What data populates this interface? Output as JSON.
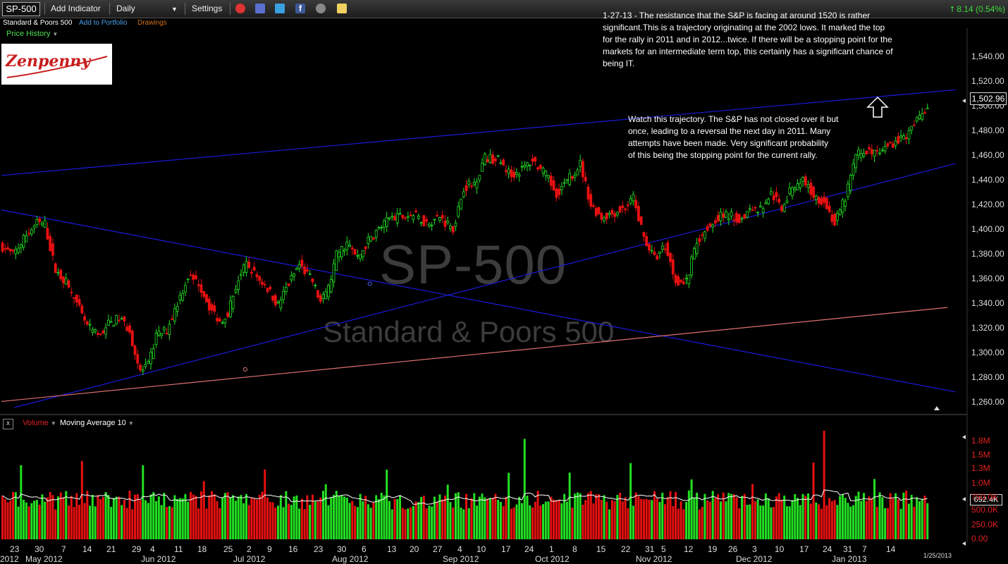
{
  "toolbar": {
    "symbol": "SP-500",
    "add_indicator": "Add Indicator",
    "interval": "Daily",
    "settings": "Settings",
    "change": "8.14 (0.54%)"
  },
  "subbar": {
    "name": "Standard & Poors 500",
    "add_portfolio": "Add to Portfolio",
    "drawings": "Drawings",
    "price_history": "Price History"
  },
  "logo_text": "Zenpenny",
  "notes": {
    "top": "1-27-13 - The resistance that the S&P is facing at around 1520 is rather\nsignificant.This is a trajectory originating at the 2002 lows. It marked the top\nfor the rally in 2011 and in 2012...twice. If there will be a stopping point for the\nmarkets for an intermediate term top, this certainly has a significant chance of\nbeing IT.",
    "mid": "Watch this trajectory. The S&P has not closed over it but\nonce, leading to a reversal the next day in 2011. Many\nattempts have been made. Very significant probability\nof this being the stopping point for the current rally."
  },
  "watermark": {
    "symbol": "SP-500",
    "name": "Standard & Poors 500"
  },
  "volume_header": {
    "close": "x",
    "volume": "Volume",
    "ma": "Moving Average 10"
  },
  "last_price": "1,502.96",
  "last_volume": "692.4K",
  "colors": {
    "up": "#22e022",
    "down": "#e81010",
    "trend": "#1a1adc",
    "support": "#e07070",
    "ma": "#ffffff"
  },
  "chart_data": {
    "type": "candlestick",
    "title": "SP-500",
    "y_ticks": [
      "1,540.00",
      "1,520.00",
      "1,500.00",
      "1,480.00",
      "1,460.00",
      "1,440.00",
      "1,420.00",
      "1,400.00",
      "1,380.00",
      "1,360.00",
      "1,340.00",
      "1,320.00",
      "1,300.00",
      "1,280.00",
      "1,260.00"
    ],
    "ylim": [
      1250,
      1545
    ],
    "x_day_ticks": [
      "23",
      "30",
      "7",
      "14",
      "21",
      "29",
      "4",
      "11",
      "18",
      "25",
      "2",
      "9",
      "16",
      "23",
      "30",
      "6",
      "13",
      "20",
      "27",
      "4",
      "10",
      "17",
      "24",
      "1",
      "8",
      "15",
      "22",
      "31",
      "5",
      "12",
      "19",
      "26",
      "3",
      "10",
      "17",
      "24",
      "31",
      "7",
      "14"
    ],
    "x_month_ticks": [
      "2012",
      "May 2012",
      "Jun 2012",
      "Jul 2012",
      "Aug 2012",
      "Sep 2012",
      "Oct 2012",
      "Nov 2012",
      "Dec 2012",
      "Jan 2013"
    ],
    "last_date": "1/25/2013",
    "close_anchors": [
      [
        0,
        1385
      ],
      [
        4,
        1378
      ],
      [
        9,
        1395
      ],
      [
        13,
        1405
      ],
      [
        16,
        1404
      ],
      [
        20,
        1365
      ],
      [
        24,
        1355
      ],
      [
        28,
        1337
      ],
      [
        32,
        1318
      ],
      [
        36,
        1310
      ],
      [
        40,
        1320
      ],
      [
        44,
        1325
      ],
      [
        48,
        1315
      ],
      [
        51,
        1285
      ],
      [
        52,
        1280
      ],
      [
        55,
        1285
      ],
      [
        58,
        1310
      ],
      [
        62,
        1315
      ],
      [
        66,
        1338
      ],
      [
        70,
        1360
      ],
      [
        74,
        1355
      ],
      [
        78,
        1335
      ],
      [
        82,
        1322
      ],
      [
        85,
        1330
      ],
      [
        89,
        1358
      ],
      [
        92,
        1370
      ],
      [
        96,
        1360
      ],
      [
        100,
        1350
      ],
      [
        104,
        1336
      ],
      [
        107,
        1350
      ],
      [
        112,
        1370
      ],
      [
        117,
        1356
      ],
      [
        120,
        1338
      ],
      [
        123,
        1350
      ],
      [
        126,
        1378
      ],
      [
        130,
        1388
      ],
      [
        134,
        1375
      ],
      [
        138,
        1390
      ],
      [
        142,
        1400
      ],
      [
        146,
        1408
      ],
      [
        150,
        1410
      ],
      [
        155,
        1412
      ],
      [
        160,
        1405
      ],
      [
        165,
        1410
      ],
      [
        170,
        1400
      ],
      [
        174,
        1435
      ],
      [
        178,
        1438
      ],
      [
        182,
        1460
      ],
      [
        187,
        1458
      ],
      [
        192,
        1445
      ],
      [
        196,
        1450
      ],
      [
        200,
        1458
      ],
      [
        205,
        1445
      ],
      [
        209,
        1430
      ],
      [
        213,
        1440
      ],
      [
        218,
        1455
      ],
      [
        222,
        1420
      ],
      [
        226,
        1410
      ],
      [
        231,
        1414
      ],
      [
        235,
        1418
      ],
      [
        238,
        1425
      ],
      [
        242,
        1393
      ],
      [
        246,
        1375
      ],
      [
        250,
        1386
      ],
      [
        254,
        1357
      ],
      [
        258,
        1355
      ],
      [
        262,
        1390
      ],
      [
        266,
        1402
      ],
      [
        270,
        1410
      ],
      [
        274,
        1412
      ],
      [
        278,
        1407
      ],
      [
        282,
        1418
      ],
      [
        286,
        1416
      ],
      [
        290,
        1430
      ],
      [
        294,
        1418
      ],
      [
        298,
        1435
      ],
      [
        302,
        1442
      ],
      [
        306,
        1428
      ],
      [
        310,
        1423
      ],
      [
        314,
        1404
      ],
      [
        318,
        1426
      ],
      [
        322,
        1462
      ],
      [
        326,
        1466
      ],
      [
        330,
        1462
      ],
      [
        334,
        1470
      ],
      [
        338,
        1475
      ],
      [
        342,
        1480
      ],
      [
        346,
        1495
      ],
      [
        349,
        1503
      ]
    ],
    "volume_ticks": [
      "1.8M",
      "1.5M",
      "1.3M",
      "1.0M",
      "750.0K",
      "500.0K",
      "250.0K",
      "0.00"
    ],
    "trendlines": [
      {
        "name": "2002 lows trajectory",
        "from": [
          0,
          1445
        ],
        "to": [
          360,
          1517
        ]
      },
      {
        "name": "descending",
        "from": [
          0,
          1416
        ],
        "to": [
          360,
          1263
        ]
      },
      {
        "name": "rising",
        "from": [
          5,
          1250
        ],
        "to": [
          360,
          1455
        ]
      },
      {
        "name": "support",
        "from": [
          0,
          1255
        ],
        "to": [
          357,
          1334
        ]
      }
    ]
  }
}
